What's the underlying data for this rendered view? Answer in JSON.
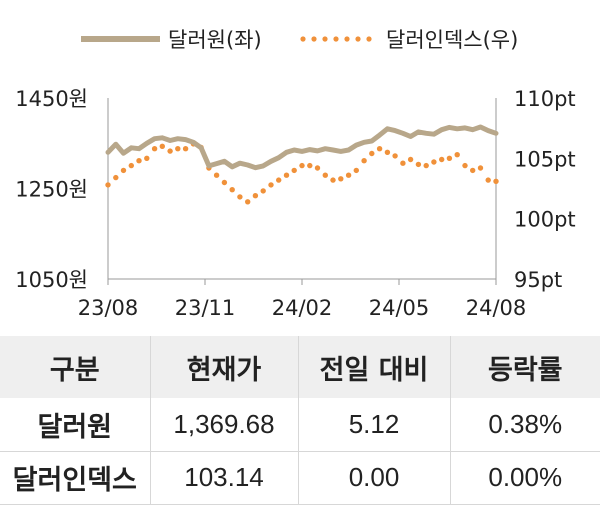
{
  "chart_data": {
    "type": "line",
    "x_tick_labels": [
      "23/08",
      "23/11",
      "24/02",
      "24/05",
      "24/08"
    ],
    "y_left": {
      "ticks": [
        "1450원",
        "1250원",
        "1050원"
      ],
      "range": [
        1050,
        1450
      ]
    },
    "y_right": {
      "ticks": [
        "110pt",
        "105pt",
        "100pt",
        "95pt"
      ],
      "range": [
        95,
        110
      ]
    },
    "legend_position": "top",
    "series": [
      {
        "name": "달러원(좌)",
        "axis": "left",
        "color": "#b8a78a",
        "style": "solid",
        "values": [
          1330,
          1348,
          1328,
          1340,
          1338,
          1350,
          1360,
          1362,
          1356,
          1360,
          1358,
          1352,
          1340,
          1300,
          1305,
          1310,
          1298,
          1306,
          1302,
          1296,
          1300,
          1310,
          1318,
          1330,
          1335,
          1332,
          1336,
          1333,
          1338,
          1335,
          1332,
          1335,
          1346,
          1352,
          1355,
          1368,
          1382,
          1378,
          1372,
          1365,
          1375,
          1372,
          1370,
          1380,
          1385,
          1382,
          1384,
          1380,
          1386,
          1378,
          1372
        ]
      },
      {
        "name": "달러인덱스(우)",
        "axis": "right",
        "color": "#f0913a",
        "style": "dotted",
        "values": [
          102.8,
          103.4,
          104.0,
          104.4,
          104.8,
          105.0,
          105.8,
          106.0,
          105.6,
          105.8,
          105.8,
          106.2,
          105.9,
          104.2,
          103.6,
          103.0,
          102.4,
          101.8,
          101.4,
          101.9,
          102.3,
          102.8,
          103.2,
          103.6,
          104.0,
          104.4,
          104.4,
          104.2,
          103.6,
          103.2,
          103.3,
          103.6,
          104.0,
          104.8,
          105.4,
          105.8,
          105.5,
          105.2,
          104.6,
          104.9,
          104.5,
          104.4,
          104.7,
          104.9,
          105.0,
          105.3,
          104.4,
          104.0,
          104.2,
          103.2,
          103.1
        ]
      }
    ]
  },
  "table": {
    "headers": [
      "구분",
      "현재가",
      "전일 대비",
      "등락률"
    ],
    "rows": [
      [
        "달러원",
        "1,369.68",
        "5.12",
        "0.38%"
      ],
      [
        "달러인덱스",
        "103.14",
        "0.00",
        "0.00%"
      ]
    ]
  }
}
